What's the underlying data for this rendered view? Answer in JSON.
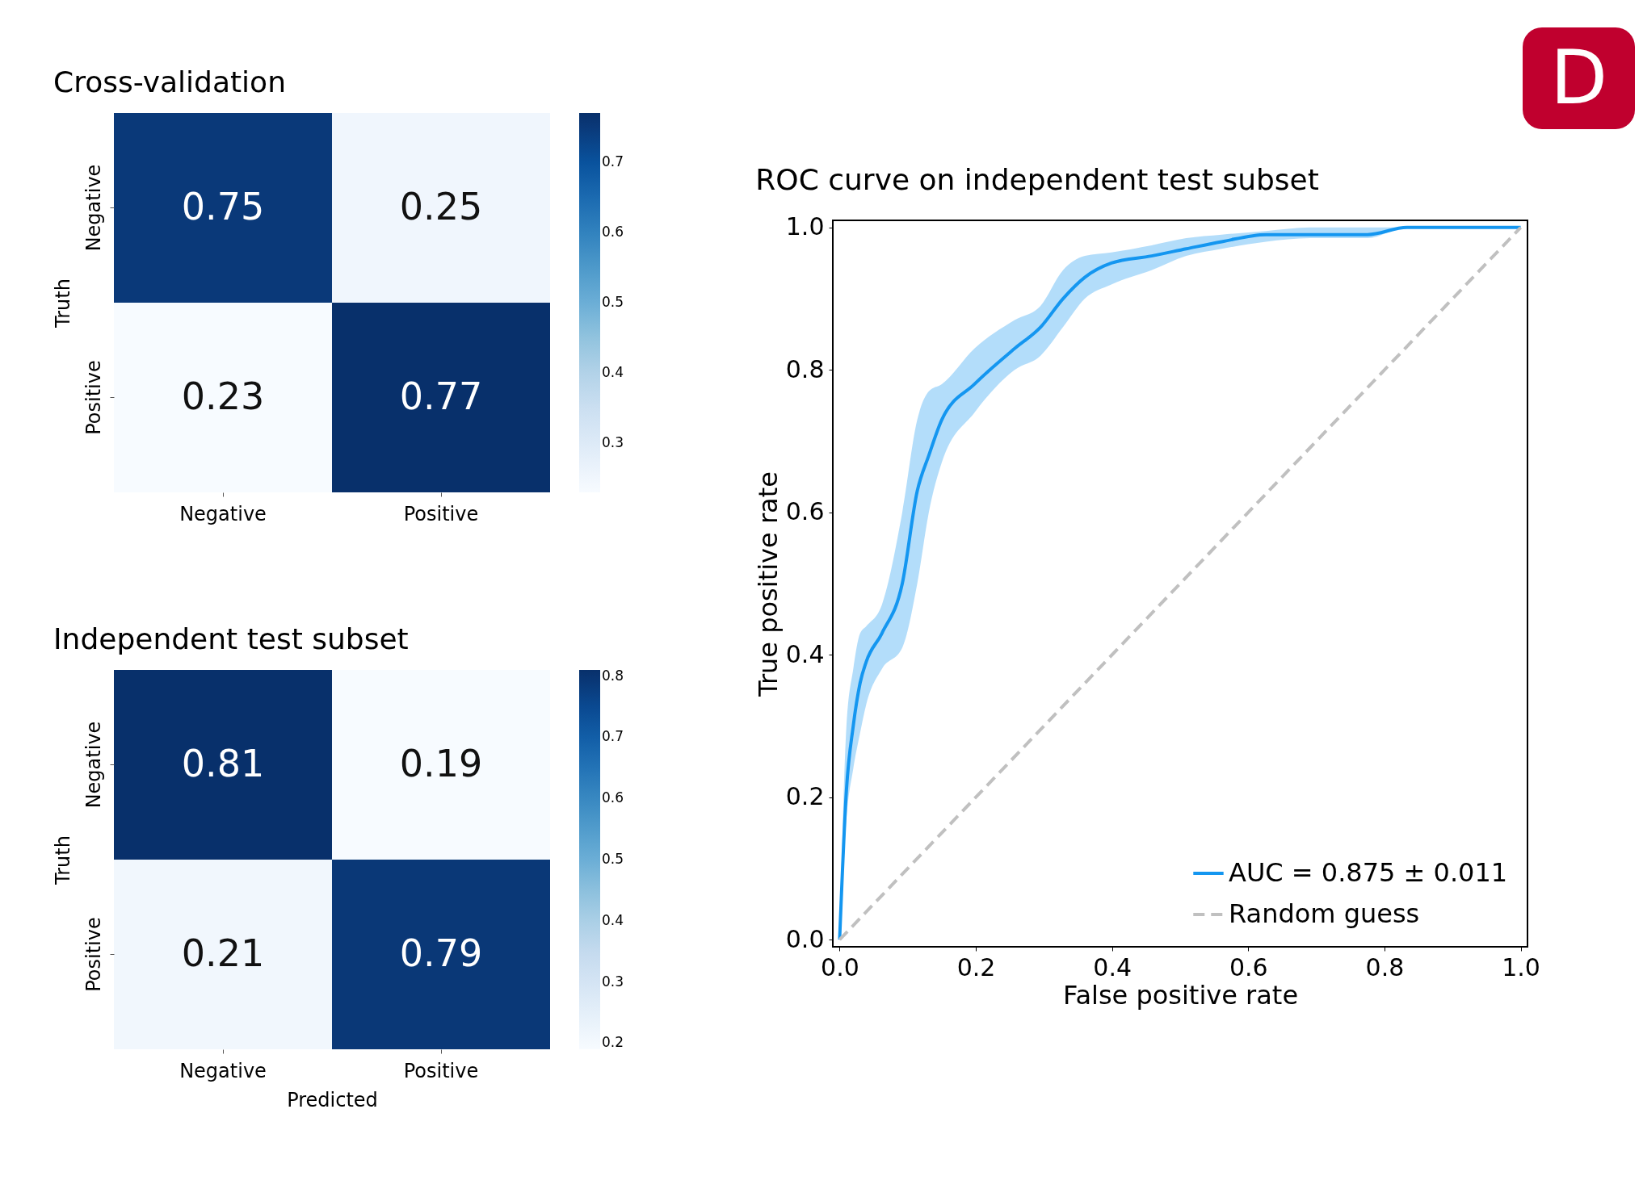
{
  "chart_data": [
    {
      "type": "heatmap",
      "title": "Cross-validation",
      "ylabel": "Truth",
      "categories": [
        "Negative",
        "Positive"
      ],
      "y_categories": [
        "Negative",
        "Positive"
      ],
      "cells": [
        [
          0.75,
          0.25
        ],
        [
          0.23,
          0.77
        ]
      ],
      "data_labels": true,
      "clim": [
        0.23,
        0.77
      ],
      "cticks": [
        0.3,
        0.4,
        0.5,
        0.6,
        0.7
      ]
    },
    {
      "type": "heatmap",
      "title": "Independent test subset",
      "xlabel": "Predicted",
      "ylabel": "Truth",
      "categories": [
        "Negative",
        "Positive"
      ],
      "y_categories": [
        "Negative",
        "Positive"
      ],
      "cells": [
        [
          0.81,
          0.19
        ],
        [
          0.21,
          0.79
        ]
      ],
      "data_labels": true,
      "clim": [
        0.19,
        0.81
      ],
      "cticks": [
        0.2,
        0.3,
        0.4,
        0.5,
        0.6,
        0.7,
        0.8
      ]
    },
    {
      "type": "line",
      "title": "ROC curve on independent test subset",
      "xlabel": "False positive rate",
      "ylabel": "True positive rate",
      "xlim": [
        -0.01,
        1.01
      ],
      "ylim": [
        -0.01,
        1.01
      ],
      "xticks": [
        {
          "value": 0,
          "label": "0.0"
        },
        0.2,
        0.4,
        0.6,
        0.8,
        {
          "value": 1,
          "label": "1.0"
        }
      ],
      "yticks": [
        {
          "value": 0,
          "label": "0.0"
        },
        0.2,
        0.4,
        0.6,
        0.8,
        {
          "value": 1,
          "label": "1.0"
        }
      ],
      "legend": "bottom right",
      "annotations": [
        "D"
      ],
      "series": [
        {
          "name": "AUC = 0.875 ± 0.011",
          "color": "#1496f0",
          "line_style": "solid",
          "x": [
            0,
            0.01,
            0.02,
            0.03,
            0.039,
            0.062,
            0.092,
            0.114,
            0.131,
            0.15,
            0.198,
            0.257,
            0.295,
            0.328,
            0.36,
            0.399,
            0.458,
            0.509,
            0.561,
            0.626,
            0.691,
            0.775,
            0.833,
            1
          ],
          "values": [
            0,
            0.21,
            0.3,
            0.36,
            0.39,
            0.43,
            0.5,
            0.63,
            0.68,
            0.73,
            0.78,
            0.83,
            0.86,
            0.9,
            0.93,
            0.95,
            0.96,
            0.97,
            0.98,
            0.99,
            0.99,
            0.99,
            1,
            1
          ],
          "lower": [
            0,
            0.17,
            0.24,
            0.29,
            0.33,
            0.38,
            0.41,
            0.5,
            0.6,
            0.67,
            0.74,
            0.8,
            0.82,
            0.86,
            0.9,
            0.92,
            0.94,
            0.96,
            0.97,
            0.98,
            0.985,
            0.985,
            1,
            1
          ],
          "upper": [
            0,
            0.3,
            0.38,
            0.43,
            0.44,
            0.47,
            0.6,
            0.73,
            0.77,
            0.78,
            0.83,
            0.87,
            0.89,
            0.94,
            0.96,
            0.965,
            0.975,
            0.985,
            0.99,
            0.995,
            1,
            1,
            1,
            1
          ]
        },
        {
          "name": "Random guess",
          "color": "#c0c0c0",
          "line_style": "dashed",
          "x": [
            0,
            1
          ],
          "values": [
            0,
            1
          ]
        }
      ]
    }
  ]
}
